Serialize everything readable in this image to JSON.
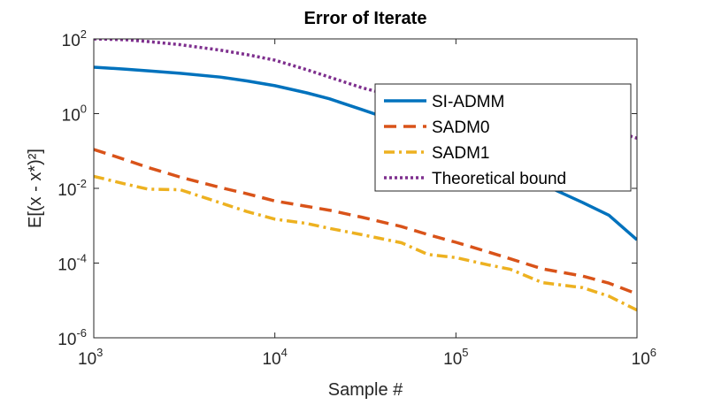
{
  "chart_data": {
    "type": "line",
    "title": "Error of Iterate",
    "xlabel": "Sample #",
    "ylabel": "E[(x - x*)²]",
    "xscale": "log",
    "yscale": "log",
    "xlim": [
      1000,
      1000000
    ],
    "ylim": [
      1e-06,
      100
    ],
    "grid": false,
    "legend_position": "center-right",
    "x_ticks": [
      {
        "value": 1000,
        "base": "10",
        "exp": "3"
      },
      {
        "value": 10000,
        "base": "10",
        "exp": "4"
      },
      {
        "value": 100000,
        "base": "10",
        "exp": "5"
      },
      {
        "value": 1000000,
        "base": "10",
        "exp": "6"
      }
    ],
    "y_ticks": [
      {
        "value": 100,
        "base": "10",
        "exp": "2"
      },
      {
        "value": 1,
        "base": "10",
        "exp": "0"
      },
      {
        "value": 0.01,
        "base": "10",
        "exp": "-2"
      },
      {
        "value": 0.0001,
        "base": "10",
        "exp": "-4"
      },
      {
        "value": 1e-06,
        "base": "10",
        "exp": "-6"
      }
    ],
    "series": [
      {
        "name": "SI-ADMM",
        "color": "#0072BD",
        "dash": "solid",
        "x": [
          1000,
          1500,
          2000,
          3000,
          5000,
          7000,
          10000,
          15000,
          20000,
          30000,
          50000,
          70000,
          100000,
          150000,
          200000,
          300000,
          500000,
          700000,
          1000000
        ],
        "y": [
          17.5,
          15.5,
          14,
          12,
          9.5,
          7.5,
          5.6,
          3.6,
          2.5,
          1.3,
          0.56,
          0.3,
          0.14,
          0.058,
          0.032,
          0.013,
          0.0042,
          0.0019,
          0.00042
        ]
      },
      {
        "name": "SADM0",
        "color": "#D95319",
        "dash": "dashed",
        "x": [
          1000,
          1500,
          2000,
          3000,
          5000,
          7000,
          10000,
          15000,
          20000,
          30000,
          50000,
          70000,
          100000,
          150000,
          200000,
          300000,
          500000,
          700000,
          1000000
        ],
        "y": [
          0.11,
          0.058,
          0.036,
          0.02,
          0.0105,
          0.0072,
          0.0046,
          0.0033,
          0.0026,
          0.0017,
          0.00095,
          0.00058,
          0.00036,
          0.0002,
          0.00013,
          7e-05,
          4.5e-05,
          2.9e-05,
          1.5e-05
        ]
      },
      {
        "name": "SADM1",
        "color": "#EDB120",
        "dash": "dashdot",
        "x": [
          1000,
          1500,
          2000,
          3000,
          5000,
          7000,
          10000,
          15000,
          20000,
          30000,
          50000,
          70000,
          100000,
          150000,
          200000,
          300000,
          500000,
          700000,
          1000000
        ],
        "y": [
          0.021,
          0.013,
          0.0095,
          0.0092,
          0.0041,
          0.0024,
          0.0015,
          0.00115,
          0.00085,
          0.00058,
          0.00035,
          0.00017,
          0.00014,
          9e-05,
          6.8e-05,
          3e-05,
          2.2e-05,
          1.3e-05,
          5.5e-06
        ]
      },
      {
        "name": "Theoretical bound",
        "color": "#7E2F8E",
        "dash": "dotted",
        "x": [
          1000,
          1500,
          2000,
          3000,
          5000,
          7000,
          10000,
          15000,
          20000,
          30000,
          50000,
          70000,
          100000,
          150000,
          200000,
          300000,
          500000,
          700000,
          1000000
        ],
        "y": [
          100,
          95,
          85,
          70,
          50,
          38,
          27,
          15,
          9.5,
          5,
          2.6,
          1.9,
          1.4,
          1.0,
          0.85,
          0.65,
          0.5,
          0.38,
          0.22
        ]
      }
    ]
  }
}
